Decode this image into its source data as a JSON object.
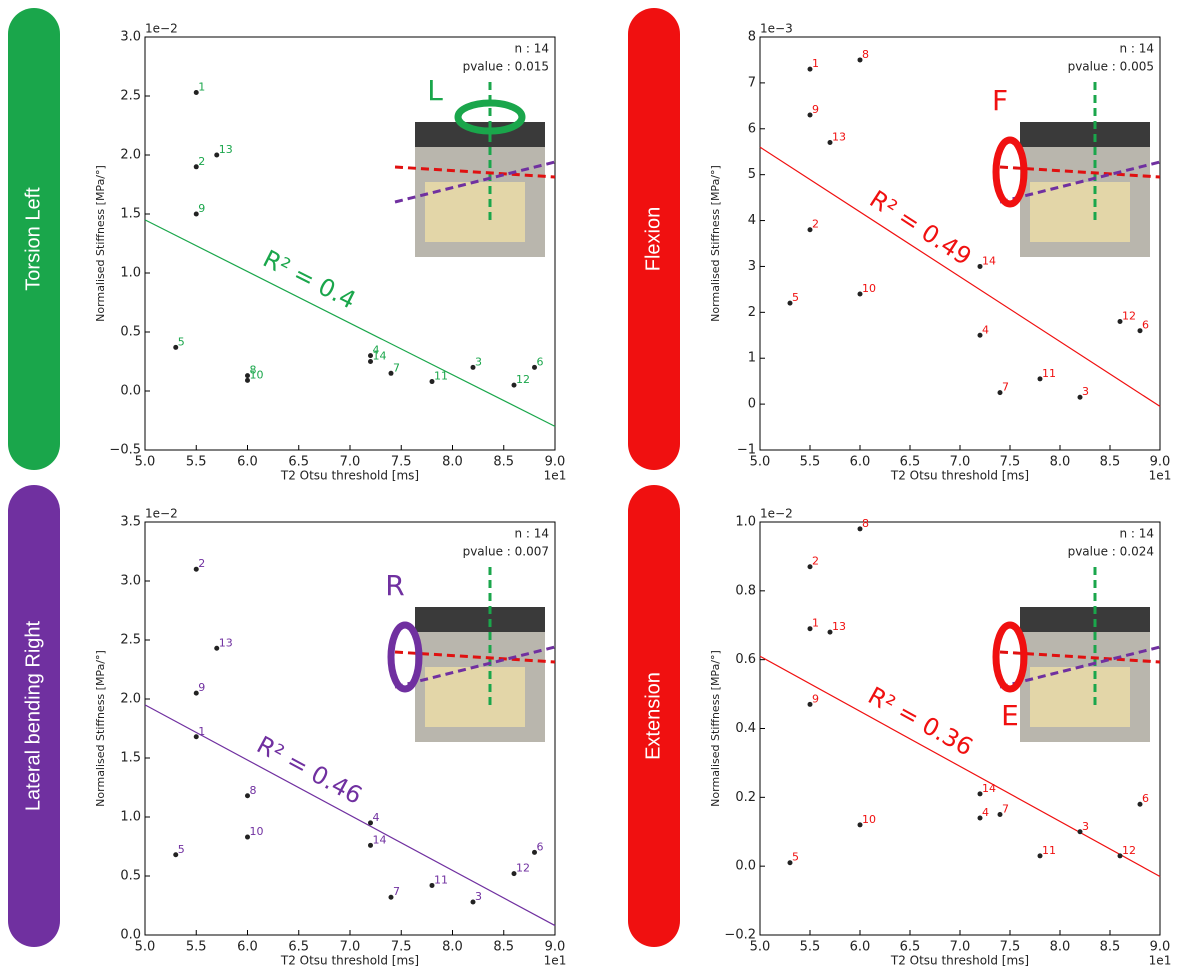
{
  "chart_data": [
    {
      "type": "scatter",
      "side_label": "Torsion Left",
      "color": "#1aa64b",
      "inset_letter": "L",
      "x_label": "T2 Otsu threshold [ms]",
      "y_label": "Normalised Stiffness [MPa/°]",
      "x_offset": "1e1",
      "y_offset": "1e−2",
      "n_text": "n : 14",
      "p_text": "pvalue : 0.015",
      "r2_text": "R² = 0.4",
      "xlim": [
        5.0,
        9.0
      ],
      "ylim": [
        -0.5,
        3.0
      ],
      "xticks": [
        {
          "value": 5.0,
          "label": "5.0"
        },
        5.5,
        {
          "value": 6.0,
          "label": "6.0"
        },
        6.5,
        {
          "value": 7.0,
          "label": "7.0"
        },
        7.5,
        {
          "value": 8.0,
          "label": "8.0"
        },
        8.5,
        {
          "value": 9.0,
          "label": "9.0"
        }
      ],
      "yticks": [
        {
          "value": -0.5,
          "label": "−0.5"
        },
        {
          "value": 0.0,
          "label": "0.0"
        },
        0.5,
        {
          "value": 1.0,
          "label": "1.0"
        },
        1.5,
        {
          "value": 2.0,
          "label": "2.0"
        },
        2.5,
        {
          "value": 3.0,
          "label": "3.0"
        }
      ],
      "labels": [
        "1",
        "2",
        "3",
        "4",
        "5",
        "6",
        "7",
        "8",
        "9",
        "10",
        "11",
        "12",
        "13",
        "14"
      ],
      "x": [
        5.5,
        5.5,
        8.2,
        7.2,
        5.3,
        8.8,
        7.4,
        6.0,
        5.5,
        6.0,
        7.8,
        8.6,
        5.7,
        7.2
      ],
      "y": [
        2.53,
        1.9,
        0.2,
        0.3,
        0.37,
        0.2,
        0.15,
        0.13,
        1.5,
        0.09,
        0.08,
        0.05,
        2.0,
        0.25
      ],
      "fit": {
        "x": [
          5.0,
          9.0
        ],
        "y": [
          1.45,
          -0.3
        ]
      }
    },
    {
      "type": "scatter",
      "side_label": "Flexion",
      "color": "#f01010",
      "inset_letter": "F",
      "x_label": "T2 Otsu threshold [ms]",
      "y_label": "Normalised Stiffness [MPa/°]",
      "x_offset": "1e1",
      "y_offset": "1e−3",
      "n_text": "n : 14",
      "p_text": "pvalue : 0.005",
      "r2_text": "R² = 0.49",
      "xlim": [
        5.0,
        9.0
      ],
      "ylim": [
        -1,
        8
      ],
      "xticks": [
        {
          "value": 5.0,
          "label": "5.0"
        },
        5.5,
        {
          "value": 6.0,
          "label": "6.0"
        },
        6.5,
        {
          "value": 7.0,
          "label": "7.0"
        },
        7.5,
        {
          "value": 8.0,
          "label": "8.0"
        },
        8.5,
        {
          "value": 9.0,
          "label": "9.0"
        }
      ],
      "yticks": [
        {
          "value": -1,
          "label": "−1"
        },
        0,
        1,
        2,
        3,
        4,
        5,
        6,
        7,
        8
      ],
      "labels": [
        "1",
        "2",
        "3",
        "4",
        "5",
        "6",
        "7",
        "8",
        "9",
        "10",
        "11",
        "12",
        "13",
        "14"
      ],
      "x": [
        5.5,
        5.5,
        8.2,
        7.2,
        5.3,
        8.8,
        7.4,
        6.0,
        5.5,
        6.0,
        7.8,
        8.6,
        5.7,
        7.2
      ],
      "y": [
        7.3,
        3.8,
        0.15,
        1.5,
        2.2,
        1.6,
        0.25,
        7.5,
        6.3,
        2.4,
        0.55,
        1.8,
        5.7,
        3.0
      ],
      "fit": {
        "x": [
          5.0,
          9.0
        ],
        "y": [
          5.6,
          -0.05
        ]
      }
    },
    {
      "type": "scatter",
      "side_label": "Lateral bending Right",
      "color": "#7030a0",
      "inset_letter": "R",
      "x_label": "T2 Otsu threshold [ms]",
      "y_label": "Normalised Stiffness [MPa/°]",
      "x_offset": "1e1",
      "y_offset": "1e−2",
      "n_text": "n : 14",
      "p_text": "pvalue : 0.007",
      "r2_text": "R² = 0.46",
      "xlim": [
        5.0,
        9.0
      ],
      "ylim": [
        0.0,
        3.5
      ],
      "xticks": [
        {
          "value": 5.0,
          "label": "5.0"
        },
        5.5,
        {
          "value": 6.0,
          "label": "6.0"
        },
        6.5,
        {
          "value": 7.0,
          "label": "7.0"
        },
        7.5,
        {
          "value": 8.0,
          "label": "8.0"
        },
        8.5,
        {
          "value": 9.0,
          "label": "9.0"
        }
      ],
      "yticks": [
        {
          "value": 0.0,
          "label": "0.0"
        },
        0.5,
        {
          "value": 1.0,
          "label": "1.0"
        },
        1.5,
        {
          "value": 2.0,
          "label": "2.0"
        },
        2.5,
        {
          "value": 3.0,
          "label": "3.0"
        },
        3.5
      ],
      "labels": [
        "1",
        "2",
        "3",
        "4",
        "5",
        "6",
        "7",
        "8",
        "9",
        "10",
        "11",
        "12",
        "13",
        "14"
      ],
      "x": [
        5.5,
        5.5,
        8.2,
        7.2,
        5.3,
        8.8,
        7.4,
        6.0,
        5.5,
        6.0,
        7.8,
        8.6,
        5.7,
        7.2
      ],
      "y": [
        1.68,
        3.1,
        0.28,
        0.95,
        0.68,
        0.7,
        0.32,
        1.18,
        2.05,
        0.83,
        0.42,
        0.52,
        2.43,
        0.76
      ],
      "fit": {
        "x": [
          5.0,
          9.0
        ],
        "y": [
          1.95,
          0.08
        ]
      }
    },
    {
      "type": "scatter",
      "side_label": "Extension",
      "color": "#f01010",
      "inset_letter": "E",
      "x_label": "T2 Otsu threshold [ms]",
      "y_label": "Normalised Stiffness [MPa/°]",
      "x_offset": "1e1",
      "y_offset": "1e−2",
      "n_text": "n : 14",
      "p_text": "pvalue : 0.024",
      "r2_text": "R² = 0.36",
      "xlim": [
        5.0,
        9.0
      ],
      "ylim": [
        -0.2,
        1.0
      ],
      "xticks": [
        {
          "value": 5.0,
          "label": "5.0"
        },
        5.5,
        {
          "value": 6.0,
          "label": "6.0"
        },
        6.5,
        {
          "value": 7.0,
          "label": "7.0"
        },
        7.5,
        {
          "value": 8.0,
          "label": "8.0"
        },
        8.5,
        {
          "value": 9.0,
          "label": "9.0"
        }
      ],
      "yticks": [
        {
          "value": -0.2,
          "label": "−0.2"
        },
        {
          "value": 0.0,
          "label": "0.0"
        },
        0.2,
        0.4,
        0.6,
        0.8,
        {
          "value": 1.0,
          "label": "1.0"
        }
      ],
      "labels": [
        "1",
        "2",
        "3",
        "4",
        "5",
        "6",
        "7",
        "8",
        "9",
        "10",
        "11",
        "12",
        "13",
        "14"
      ],
      "x": [
        5.5,
        5.5,
        8.2,
        7.2,
        5.3,
        8.8,
        7.4,
        6.0,
        5.5,
        6.0,
        7.8,
        8.6,
        5.7,
        7.2
      ],
      "y": [
        0.69,
        0.87,
        0.1,
        0.14,
        0.01,
        0.18,
        0.15,
        0.98,
        0.47,
        0.12,
        0.03,
        0.03,
        0.68,
        0.21
      ],
      "fit": {
        "x": [
          5.0,
          9.0
        ],
        "y": [
          0.61,
          -0.03
        ]
      }
    }
  ]
}
